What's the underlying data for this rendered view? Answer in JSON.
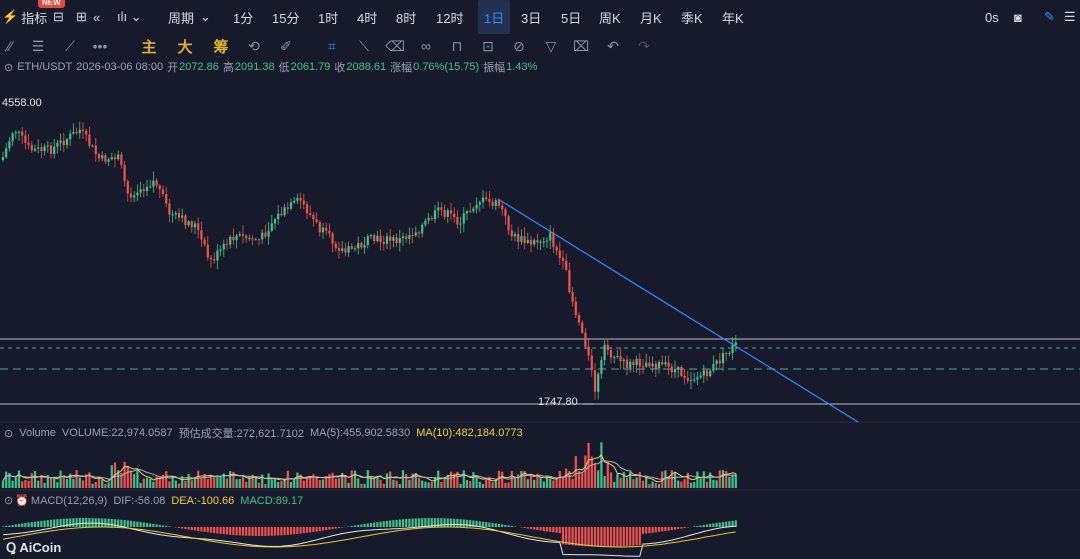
{
  "topbar": {
    "indicator_label": "指标",
    "new_badge": "NEW",
    "period_label": "周期",
    "intervals": [
      "1分",
      "15分",
      "1时",
      "4时",
      "8时",
      "12时",
      "1日",
      "3日",
      "5日",
      "周K",
      "月K",
      "季K",
      "年K"
    ],
    "active_interval": "1日",
    "countdown": "0s"
  },
  "drawtools": {
    "main": "主",
    "big": "大",
    "chip": "筹"
  },
  "info": {
    "symbol": "ETH/USDT",
    "datetime": "2026-03-06 08:00",
    "open_label": "开",
    "open": "2072.86",
    "high_label": "高",
    "high": "2091.38",
    "low_label": "低",
    "low": "2061.79",
    "close_label": "收",
    "close": "2088.61",
    "change_label": "涨幅",
    "change": "0.76%(15.75)",
    "amp_label": "振幅",
    "amp": "1.43%"
  },
  "price": {
    "top": "4558.00",
    "low": "1747.80"
  },
  "volume": {
    "title": "Volume",
    "volume": "VOLUME:22,974.0587",
    "est": "预估成交量:272,621.7102",
    "ma5": "MA(5):455,902.5830",
    "ma10": "MA(10):482,184.0773"
  },
  "macd": {
    "title": "MACD(12,26,9)",
    "dif": "DIF:-56.08",
    "dea": "DEA:-100.66",
    "macd": "MACD:89.17"
  },
  "logo": "AiCoin",
  "colors": {
    "up": "#3fc48b",
    "down": "#f0534f",
    "accent": "#2f8cff",
    "bg": "#161a2b"
  }
}
